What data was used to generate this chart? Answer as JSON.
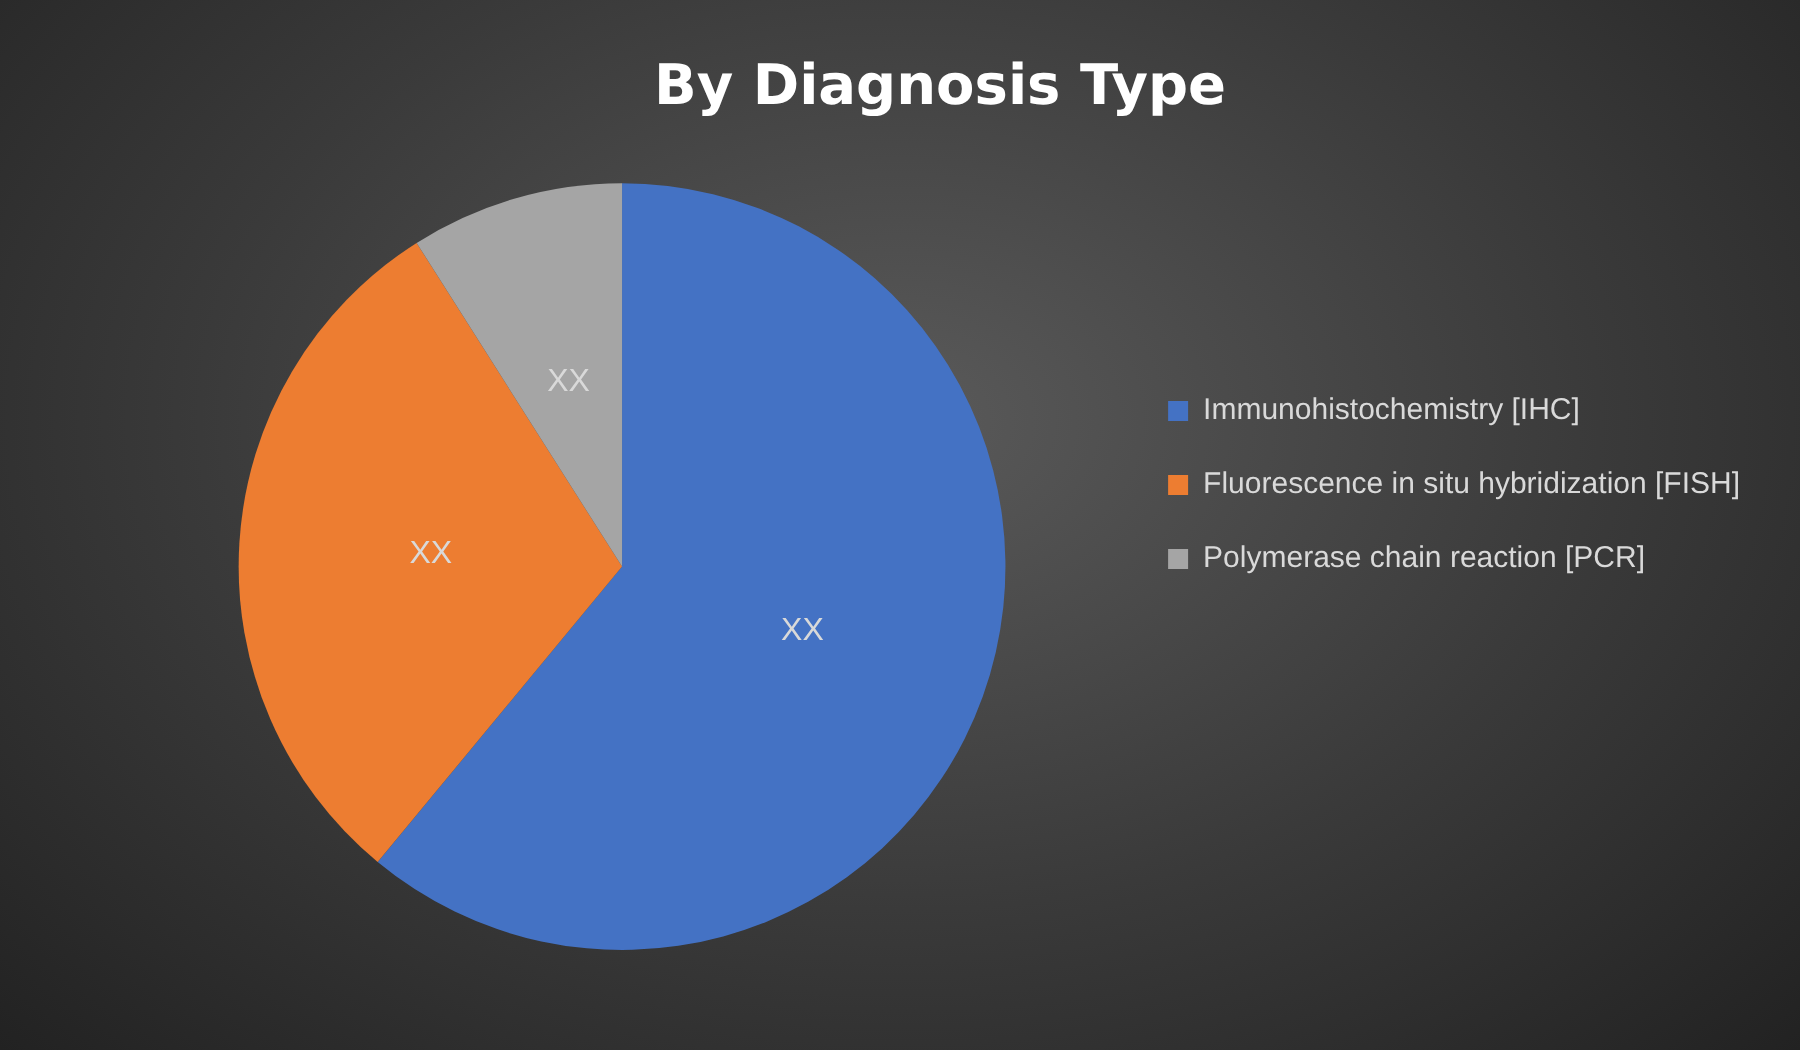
{
  "chart_data": {
    "type": "pie",
    "title": "By Diagnosis Type",
    "categories": [
      "Immunohistochemistry [IHC]",
      "Fluorescence in situ hybridization [FISH]",
      "Polymerase chain reaction [PCR]"
    ],
    "values": [
      61,
      30,
      9
    ],
    "colors": [
      "#4472c4",
      "#ed7d31",
      "#a5a5a5"
    ],
    "value_labels": [
      "XX",
      "XX",
      "XX"
    ],
    "legend": "right"
  }
}
